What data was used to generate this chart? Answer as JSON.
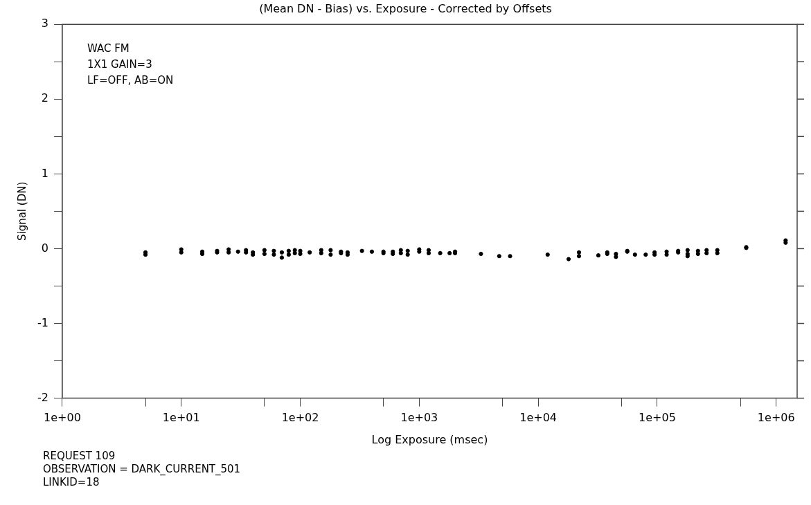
{
  "chart_data": {
    "type": "scatter",
    "title": "(Mean DN - Bias) vs. Exposure - Corrected by Offsets",
    "xlabel": "Log Exposure (msec)",
    "ylabel": "Signal (DN)",
    "annotations": [
      "WAC FM",
      "1X1 GAIN=3",
      "LF=OFF, AB=ON",
      "REQUEST 109",
      "OBSERVATION = DARK_CURRENT_501",
      "LINKID=18"
    ],
    "log": "x",
    "grid": false,
    "legend": false,
    "marker": "circle",
    "color": "#000000",
    "x": [
      5,
      5,
      10,
      10,
      15,
      15,
      20,
      20,
      25,
      25,
      30,
      35,
      35,
      40,
      40,
      50,
      50,
      60,
      60,
      70,
      70,
      80,
      80,
      90,
      90,
      100,
      100,
      120,
      150,
      150,
      180,
      180,
      220,
      220,
      250,
      250,
      330,
      400,
      500,
      500,
      600,
      600,
      700,
      700,
      800,
      800,
      1000,
      1000,
      1200,
      1200,
      1500,
      1800,
      2000,
      2000,
      3300,
      4700,
      5800,
      12000,
      18000,
      22000,
      22000,
      32000,
      38000,
      38000,
      45000,
      45000,
      56000,
      56000,
      65000,
      80000,
      95000,
      95000,
      120000,
      120000,
      150000,
      150000,
      180000,
      180000,
      180000,
      220000,
      220000,
      260000,
      260000,
      320000,
      320000,
      560000,
      560000,
      1200000,
      1200000
    ],
    "values": [
      -0.05,
      -0.08,
      -0.01,
      -0.05,
      -0.04,
      -0.07,
      -0.03,
      -0.05,
      -0.01,
      -0.05,
      -0.04,
      -0.02,
      -0.05,
      -0.05,
      -0.08,
      -0.02,
      -0.07,
      -0.03,
      -0.08,
      -0.05,
      -0.12,
      -0.03,
      -0.08,
      -0.02,
      -0.06,
      -0.03,
      -0.07,
      -0.05,
      -0.02,
      -0.06,
      -0.02,
      -0.08,
      -0.04,
      -0.06,
      -0.05,
      -0.08,
      -0.03,
      -0.04,
      -0.04,
      -0.06,
      -0.04,
      -0.07,
      -0.02,
      -0.06,
      -0.03,
      -0.08,
      -0.01,
      -0.04,
      -0.02,
      -0.06,
      -0.06,
      -0.06,
      -0.04,
      -0.06,
      -0.07,
      -0.1,
      -0.1,
      -0.08,
      -0.14,
      -0.05,
      -0.1,
      -0.09,
      -0.05,
      -0.07,
      -0.07,
      -0.11,
      -0.03,
      -0.04,
      -0.08,
      -0.08,
      -0.05,
      -0.08,
      -0.04,
      -0.08,
      -0.03,
      -0.05,
      -0.02,
      -0.07,
      -0.1,
      -0.03,
      -0.07,
      -0.02,
      -0.06,
      -0.02,
      -0.06,
      0.01,
      0.02,
      0.08,
      0.11
    ],
    "xlim": [
      1,
      1500000
    ],
    "xticks": [
      {
        "value": 1,
        "label": "1e+00"
      },
      {
        "value": 5,
        "label": null
      },
      {
        "value": 10,
        "label": "1e+01"
      },
      {
        "value": 50,
        "label": null
      },
      {
        "value": 100,
        "label": "1e+02"
      },
      {
        "value": 500,
        "label": null
      },
      {
        "value": 1000,
        "label": "1e+03"
      },
      {
        "value": 5000,
        "label": null
      },
      {
        "value": 10000,
        "label": "1e+04"
      },
      {
        "value": 50000,
        "label": null
      },
      {
        "value": 100000,
        "label": "1e+05"
      },
      {
        "value": 500000,
        "label": null
      },
      {
        "value": 1000000,
        "label": "1e+06"
      }
    ],
    "ylim": [
      -2,
      3
    ],
    "yticks": [
      -2,
      {
        "value": -1.5,
        "label": null
      },
      -1,
      {
        "value": -0.5,
        "label": null
      },
      0,
      {
        "value": 0.5,
        "label": null
      },
      1,
      {
        "value": 1.5,
        "label": null
      },
      2,
      {
        "value": 2.5,
        "label": null
      },
      3
    ]
  }
}
